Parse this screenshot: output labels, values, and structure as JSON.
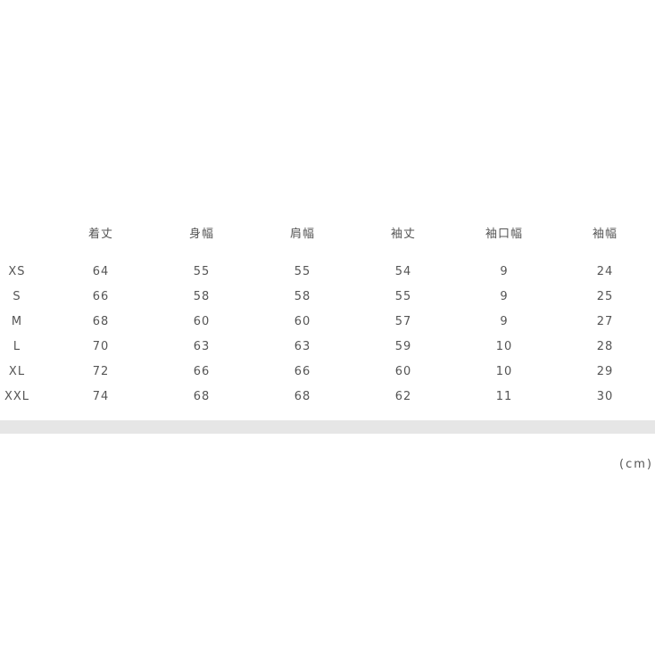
{
  "table": {
    "columns": [
      "",
      "着丈",
      "身幅",
      "肩幅",
      "袖丈",
      "袖口幅",
      "袖幅"
    ],
    "rows": [
      [
        "XS",
        "64",
        "55",
        "55",
        "54",
        "9",
        "24"
      ],
      [
        "S",
        "66",
        "58",
        "58",
        "55",
        "9",
        "25"
      ],
      [
        "M",
        "68",
        "60",
        "60",
        "57",
        "9",
        "27"
      ],
      [
        "L",
        "70",
        "63",
        "63",
        "59",
        "10",
        "28"
      ],
      [
        "XL",
        "72",
        "66",
        "66",
        "60",
        "10",
        "29"
      ],
      [
        "XXL",
        "74",
        "68",
        "68",
        "62",
        "11",
        "30"
      ]
    ]
  },
  "unit": "(cm)",
  "colors": {
    "divider_bar": "#e6e6e6",
    "text": "#555555"
  }
}
